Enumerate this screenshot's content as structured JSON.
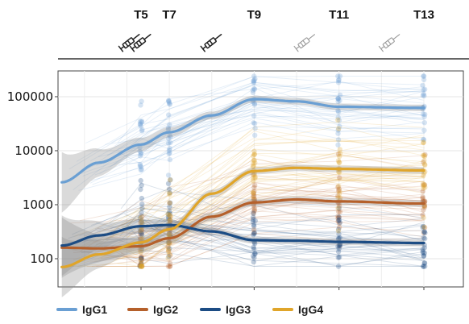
{
  "chart_data": {
    "type": "line",
    "title": "",
    "xlabel": "",
    "ylabel": "",
    "y_scale": "log",
    "ylim": [
      30,
      300000
    ],
    "yticks": [
      {
        "value": 100,
        "label": "100"
      },
      {
        "value": 1000,
        "label": "1000"
      },
      {
        "value": 10000,
        "label": "10000"
      },
      {
        "value": 100000,
        "label": "100000"
      }
    ],
    "timepoints": [
      {
        "label": "T5",
        "x": 5
      },
      {
        "label": "T7",
        "x": 6
      },
      {
        "label": "T9",
        "x": 9
      },
      {
        "label": "T11",
        "x": 12
      },
      {
        "label": "T13",
        "x": 15
      }
    ],
    "vaccinations": [
      {
        "x": 4.6,
        "style": "solid"
      },
      {
        "x": 5.0,
        "style": "solid"
      },
      {
        "x": 7.5,
        "style": "solid"
      },
      {
        "x": 10.8,
        "style": "faded"
      },
      {
        "x": 13.8,
        "style": "faded"
      }
    ],
    "grid": true,
    "legend_position": "bottom",
    "series": [
      {
        "name": "IgG1",
        "color": "#6a9fd3",
        "points": [
          [
            2.2,
            2600
          ],
          [
            3.5,
            6000
          ],
          [
            5,
            13000
          ],
          [
            6,
            22000
          ],
          [
            7.5,
            45000
          ],
          [
            9,
            90000
          ],
          [
            10.5,
            82000
          ],
          [
            12,
            65000
          ],
          [
            15,
            62000
          ]
        ]
      },
      {
        "name": "IgG2",
        "color": "#b5602b",
        "points": [
          [
            2.2,
            160
          ],
          [
            3.5,
            155
          ],
          [
            5,
            170
          ],
          [
            6,
            240
          ],
          [
            7.5,
            600
          ],
          [
            9,
            1100
          ],
          [
            10.5,
            1250
          ],
          [
            12,
            1150
          ],
          [
            15,
            1050
          ]
        ]
      },
      {
        "name": "IgG3",
        "color": "#1c4c84",
        "points": [
          [
            2.2,
            175
          ],
          [
            3.5,
            270
          ],
          [
            5,
            400
          ],
          [
            6,
            420
          ],
          [
            7.5,
            320
          ],
          [
            9,
            220
          ],
          [
            10.5,
            215
          ],
          [
            12,
            205
          ],
          [
            15,
            195
          ]
        ]
      },
      {
        "name": "IgG4",
        "color": "#e0a52a",
        "points": [
          [
            2.2,
            70
          ],
          [
            3.5,
            120
          ],
          [
            5,
            200
          ],
          [
            6,
            350
          ],
          [
            7.5,
            1600
          ],
          [
            9,
            4200
          ],
          [
            10.5,
            4800
          ],
          [
            12,
            4600
          ],
          [
            15,
            4300
          ]
        ]
      }
    ]
  }
}
